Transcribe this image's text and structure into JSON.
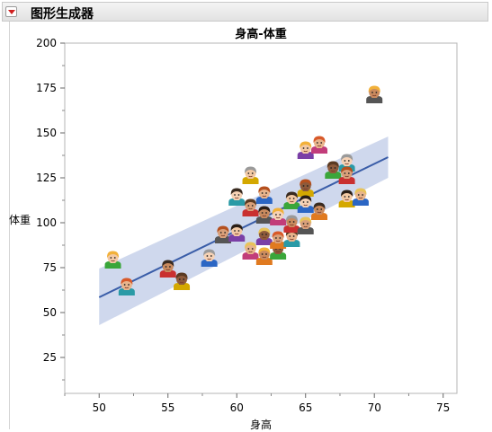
{
  "window": {
    "title": "图形生成器"
  },
  "chart_data": {
    "type": "scatter",
    "title": "身高-体重",
    "xlabel": "身高",
    "ylabel": "体重",
    "xlim": [
      47.5,
      76
    ],
    "ylim": [
      5,
      200
    ],
    "xticks": [
      50,
      55,
      60,
      65,
      70,
      75
    ],
    "yticks": [
      25,
      50,
      75,
      100,
      125,
      150,
      175,
      200
    ],
    "grid": false,
    "legend": "none",
    "markers": "person-icons",
    "points": [
      {
        "x": 51,
        "y": 79
      },
      {
        "x": 52,
        "y": 64
      },
      {
        "x": 55,
        "y": 74
      },
      {
        "x": 56,
        "y": 67
      },
      {
        "x": 58,
        "y": 80
      },
      {
        "x": 59,
        "y": 93
      },
      {
        "x": 60,
        "y": 94
      },
      {
        "x": 61,
        "y": 84
      },
      {
        "x": 62,
        "y": 81
      },
      {
        "x": 63,
        "y": 84
      },
      {
        "x": 60,
        "y": 114
      },
      {
        "x": 61,
        "y": 108
      },
      {
        "x": 61,
        "y": 126
      },
      {
        "x": 62,
        "y": 115
      },
      {
        "x": 62,
        "y": 104
      },
      {
        "x": 62,
        "y": 92
      },
      {
        "x": 63,
        "y": 103
      },
      {
        "x": 63,
        "y": 90
      },
      {
        "x": 64,
        "y": 112
      },
      {
        "x": 64,
        "y": 91
      },
      {
        "x": 64,
        "y": 99
      },
      {
        "x": 65,
        "y": 119
      },
      {
        "x": 65,
        "y": 110
      },
      {
        "x": 65,
        "y": 98
      },
      {
        "x": 65,
        "y": 140
      },
      {
        "x": 66,
        "y": 143
      },
      {
        "x": 66,
        "y": 106
      },
      {
        "x": 67,
        "y": 129
      },
      {
        "x": 68,
        "y": 133
      },
      {
        "x": 68,
        "y": 126
      },
      {
        "x": 68,
        "y": 113
      },
      {
        "x": 69,
        "y": 114
      },
      {
        "x": 70,
        "y": 171
      }
    ],
    "fit": {
      "x": [
        50,
        71
      ],
      "y": [
        58.5,
        136.5
      ]
    },
    "band": {
      "x": [
        50,
        71
      ],
      "lower": [
        43,
        125
      ],
      "upper": [
        74.5,
        148
      ]
    }
  }
}
